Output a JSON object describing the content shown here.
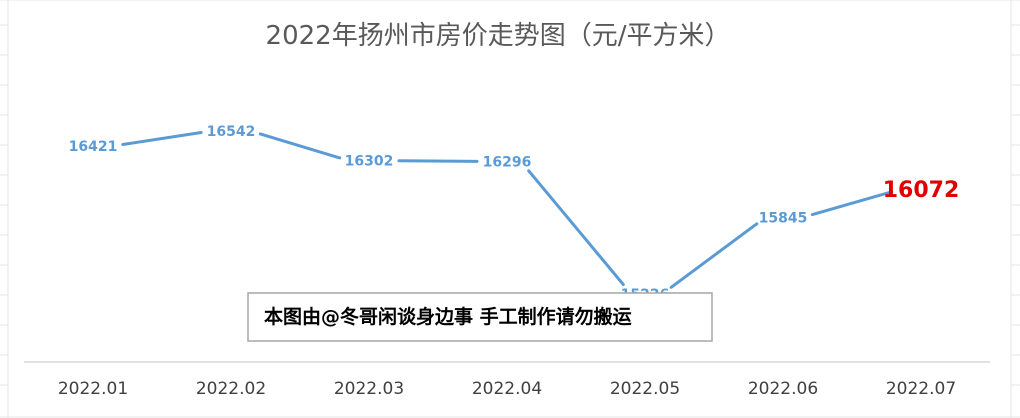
{
  "chart_data": {
    "type": "line",
    "title": "2022年扬州市房价走势图（元/平方米）",
    "categories": [
      "2022.01",
      "2022.02",
      "2022.03",
      "2022.04",
      "2022.05",
      "2022.06",
      "2022.07"
    ],
    "series": [
      {
        "values": [
          16421,
          16542,
          16302,
          16296,
          15226,
          15845,
          16072
        ],
        "color": "#5b9bd5"
      }
    ],
    "highlight": {
      "index": 6,
      "color": "#e00000"
    },
    "grid": false,
    "legend": "none"
  },
  "note": "本图由@冬哥闲谈身边事 手工制作请勿搬运"
}
